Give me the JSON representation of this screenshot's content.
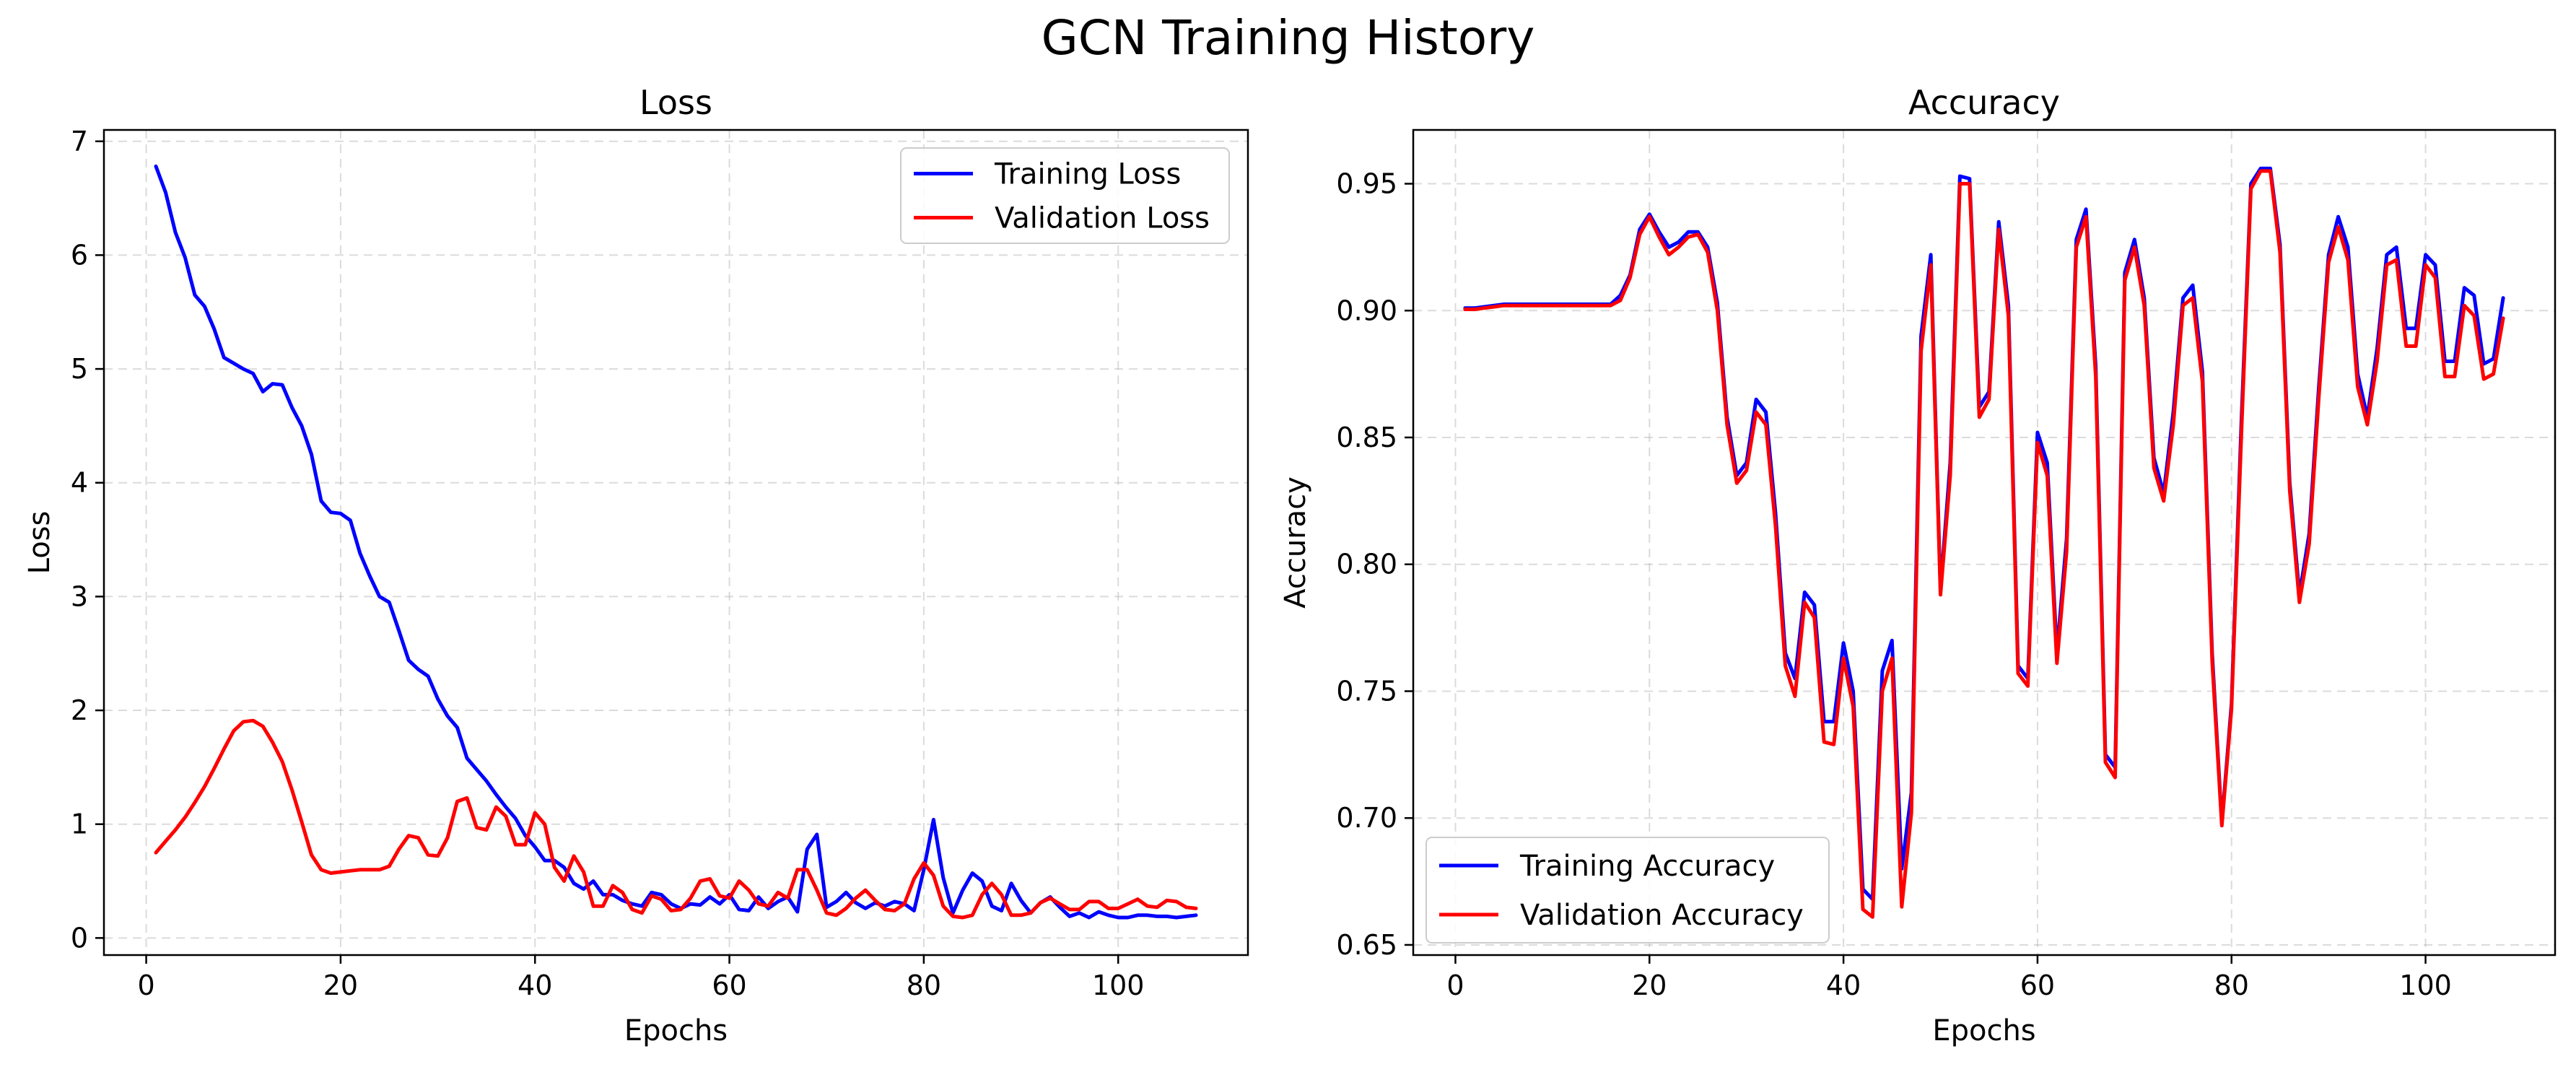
{
  "figure": {
    "title": "GCN Training History"
  },
  "chart_data": [
    {
      "type": "line",
      "title": "Loss",
      "xlabel": "Epochs",
      "ylabel": "Loss",
      "xlim": [
        -4.35,
        113.35
      ],
      "ylim": [
        -0.15,
        7.1
      ],
      "xticks": [
        0,
        20,
        40,
        60,
        80,
        100
      ],
      "yticks": [
        0,
        1,
        2,
        3,
        4,
        5,
        6,
        7
      ],
      "grid": true,
      "legend_position": "top-right",
      "series": [
        {
          "name": "Training Loss",
          "color": "#0000ff",
          "x": [
            1,
            2,
            3,
            4,
            5,
            6,
            7,
            8,
            9,
            10,
            11,
            12,
            13,
            14,
            15,
            16,
            17,
            18,
            19,
            20,
            21,
            22,
            23,
            24,
            25,
            26,
            27,
            28,
            29,
            30,
            31,
            32,
            33,
            34,
            35,
            36,
            37,
            38,
            39,
            40,
            41,
            42,
            43,
            44,
            45,
            46,
            47,
            48,
            49,
            50,
            51,
            52,
            53,
            54,
            55,
            56,
            57,
            58,
            59,
            60,
            61,
            62,
            63,
            64,
            65,
            66,
            67,
            68,
            69,
            70,
            71,
            72,
            73,
            74,
            75,
            76,
            77,
            78,
            79,
            80,
            81,
            82,
            83,
            84,
            85,
            86,
            87,
            88,
            89,
            90,
            91,
            92,
            93,
            94,
            95,
            96,
            97,
            98,
            99,
            100,
            101,
            102,
            103,
            104,
            105,
            106,
            107,
            108
          ],
          "y": [
            6.78,
            6.55,
            6.2,
            5.98,
            5.65,
            5.55,
            5.35,
            5.1,
            5.05,
            5.0,
            4.96,
            4.8,
            4.87,
            4.86,
            4.66,
            4.5,
            4.25,
            3.84,
            3.74,
            3.73,
            3.67,
            3.38,
            3.18,
            3.0,
            2.95,
            2.7,
            2.44,
            2.36,
            2.3,
            2.1,
            1.95,
            1.85,
            1.58,
            1.48,
            1.38,
            1.26,
            1.15,
            1.05,
            0.9,
            0.8,
            0.68,
            0.68,
            0.62,
            0.48,
            0.43,
            0.5,
            0.38,
            0.38,
            0.33,
            0.3,
            0.28,
            0.4,
            0.38,
            0.3,
            0.26,
            0.3,
            0.29,
            0.36,
            0.3,
            0.38,
            0.25,
            0.24,
            0.36,
            0.26,
            0.32,
            0.36,
            0.23,
            0.78,
            0.91,
            0.27,
            0.32,
            0.4,
            0.31,
            0.26,
            0.31,
            0.28,
            0.32,
            0.3,
            0.24,
            0.6,
            1.04,
            0.53,
            0.22,
            0.42,
            0.57,
            0.5,
            0.28,
            0.24,
            0.48,
            0.33,
            0.22,
            0.31,
            0.36,
            0.27,
            0.19,
            0.22,
            0.18,
            0.23,
            0.2,
            0.18,
            0.18,
            0.2,
            0.2,
            0.19,
            0.19,
            0.18,
            0.19,
            0.2
          ]
        },
        {
          "name": "Validation Loss",
          "color": "#ff0000",
          "x": [
            1,
            2,
            3,
            4,
            5,
            6,
            7,
            8,
            9,
            10,
            11,
            12,
            13,
            14,
            15,
            16,
            17,
            18,
            19,
            20,
            21,
            22,
            23,
            24,
            25,
            26,
            27,
            28,
            29,
            30,
            31,
            32,
            33,
            34,
            35,
            36,
            37,
            38,
            39,
            40,
            41,
            42,
            43,
            44,
            45,
            46,
            47,
            48,
            49,
            50,
            51,
            52,
            53,
            54,
            55,
            56,
            57,
            58,
            59,
            60,
            61,
            62,
            63,
            64,
            65,
            66,
            67,
            68,
            69,
            70,
            71,
            72,
            73,
            74,
            75,
            76,
            77,
            78,
            79,
            80,
            81,
            82,
            83,
            84,
            85,
            86,
            87,
            88,
            89,
            90,
            91,
            92,
            93,
            94,
            95,
            96,
            97,
            98,
            99,
            100,
            101,
            102,
            103,
            104,
            105,
            106,
            107,
            108
          ],
          "y": [
            0.75,
            0.85,
            0.95,
            1.06,
            1.19,
            1.33,
            1.49,
            1.66,
            1.82,
            1.9,
            1.91,
            1.86,
            1.72,
            1.55,
            1.3,
            1.02,
            0.73,
            0.6,
            0.57,
            0.58,
            0.59,
            0.6,
            0.6,
            0.6,
            0.63,
            0.78,
            0.9,
            0.88,
            0.73,
            0.72,
            0.88,
            1.2,
            1.23,
            0.97,
            0.95,
            1.15,
            1.07,
            0.82,
            0.82,
            1.1,
            1.0,
            0.62,
            0.5,
            0.72,
            0.58,
            0.28,
            0.28,
            0.46,
            0.4,
            0.25,
            0.22,
            0.37,
            0.34,
            0.24,
            0.25,
            0.35,
            0.5,
            0.52,
            0.37,
            0.35,
            0.5,
            0.42,
            0.3,
            0.28,
            0.4,
            0.35,
            0.6,
            0.6,
            0.42,
            0.22,
            0.2,
            0.26,
            0.35,
            0.42,
            0.33,
            0.25,
            0.24,
            0.3,
            0.52,
            0.66,
            0.55,
            0.28,
            0.19,
            0.18,
            0.2,
            0.38,
            0.48,
            0.38,
            0.2,
            0.2,
            0.22,
            0.31,
            0.35,
            0.3,
            0.25,
            0.25,
            0.32,
            0.32,
            0.26,
            0.26,
            0.3,
            0.34,
            0.28,
            0.27,
            0.33,
            0.32,
            0.27,
            0.26
          ]
        }
      ]
    },
    {
      "type": "line",
      "title": "Accuracy",
      "xlabel": "Epochs",
      "ylabel": "Accuracy",
      "xlim": [
        -4.35,
        113.35
      ],
      "ylim": [
        0.646,
        0.9712
      ],
      "xticks": [
        0,
        20,
        40,
        60,
        80,
        100
      ],
      "yticks": [
        0.65,
        0.7,
        0.75,
        0.8,
        0.85,
        0.9,
        0.95
      ],
      "ytick_labels": [
        "0.65",
        "0.70",
        "0.75",
        "0.80",
        "0.85",
        "0.90",
        "0.95"
      ],
      "grid": true,
      "legend_position": "bottom-left",
      "series": [
        {
          "name": "Training Accuracy",
          "color": "#0000ff",
          "x": [
            1,
            2,
            3,
            4,
            5,
            6,
            7,
            8,
            9,
            10,
            11,
            12,
            13,
            14,
            15,
            16,
            17,
            18,
            19,
            20,
            21,
            22,
            23,
            24,
            25,
            26,
            27,
            28,
            29,
            30,
            31,
            32,
            33,
            34,
            35,
            36,
            37,
            38,
            39,
            40,
            41,
            42,
            43,
            44,
            45,
            46,
            47,
            48,
            49,
            50,
            51,
            52,
            53,
            54,
            55,
            56,
            57,
            58,
            59,
            60,
            61,
            62,
            63,
            64,
            65,
            66,
            67,
            68,
            69,
            70,
            71,
            72,
            73,
            74,
            75,
            76,
            77,
            78,
            79,
            80,
            81,
            82,
            83,
            84,
            85,
            86,
            87,
            88,
            89,
            90,
            91,
            92,
            93,
            94,
            95,
            96,
            97,
            98,
            99,
            100,
            101,
            102,
            103,
            104,
            105,
            106,
            107,
            108
          ],
          "y": [
            0.901,
            0.901,
            0.9015,
            0.902,
            0.9025,
            0.9025,
            0.9025,
            0.9025,
            0.9025,
            0.9025,
            0.9025,
            0.9025,
            0.9025,
            0.9025,
            0.9025,
            0.9025,
            0.906,
            0.914,
            0.932,
            0.938,
            0.931,
            0.925,
            0.927,
            0.931,
            0.931,
            0.925,
            0.903,
            0.858,
            0.835,
            0.84,
            0.865,
            0.86,
            0.82,
            0.765,
            0.755,
            0.789,
            0.784,
            0.738,
            0.738,
            0.769,
            0.75,
            0.672,
            0.668,
            0.758,
            0.77,
            0.68,
            0.71,
            0.89,
            0.922,
            0.79,
            0.84,
            0.953,
            0.952,
            0.862,
            0.868,
            0.935,
            0.902,
            0.76,
            0.755,
            0.852,
            0.84,
            0.765,
            0.81,
            0.928,
            0.94,
            0.878,
            0.725,
            0.72,
            0.915,
            0.928,
            0.905,
            0.842,
            0.828,
            0.86,
            0.905,
            0.91,
            0.876,
            0.765,
            0.698,
            0.745,
            0.855,
            0.95,
            0.956,
            0.956,
            0.926,
            0.832,
            0.788,
            0.812,
            0.87,
            0.922,
            0.937,
            0.925,
            0.875,
            0.858,
            0.885,
            0.922,
            0.925,
            0.893,
            0.893,
            0.922,
            0.918,
            0.88,
            0.88,
            0.909,
            0.906,
            0.879,
            0.881,
            0.905
          ]
        },
        {
          "name": "Validation Accuracy",
          "color": "#ff0000",
          "x": [
            1,
            2,
            3,
            4,
            5,
            6,
            7,
            8,
            9,
            10,
            11,
            12,
            13,
            14,
            15,
            16,
            17,
            18,
            19,
            20,
            21,
            22,
            23,
            24,
            25,
            26,
            27,
            28,
            29,
            30,
            31,
            32,
            33,
            34,
            35,
            36,
            37,
            38,
            39,
            40,
            41,
            42,
            43,
            44,
            45,
            46,
            47,
            48,
            49,
            50,
            51,
            52,
            53,
            54,
            55,
            56,
            57,
            58,
            59,
            60,
            61,
            62,
            63,
            64,
            65,
            66,
            67,
            68,
            69,
            70,
            71,
            72,
            73,
            74,
            75,
            76,
            77,
            78,
            79,
            80,
            81,
            82,
            83,
            84,
            85,
            86,
            87,
            88,
            89,
            90,
            91,
            92,
            93,
            94,
            95,
            96,
            97,
            98,
            99,
            100,
            101,
            102,
            103,
            104,
            105,
            106,
            107,
            108
          ],
          "y": [
            0.9005,
            0.9005,
            0.901,
            0.9015,
            0.902,
            0.902,
            0.902,
            0.902,
            0.902,
            0.902,
            0.902,
            0.902,
            0.902,
            0.902,
            0.902,
            0.902,
            0.904,
            0.913,
            0.93,
            0.937,
            0.929,
            0.922,
            0.925,
            0.929,
            0.93,
            0.923,
            0.9,
            0.855,
            0.832,
            0.837,
            0.86,
            0.855,
            0.815,
            0.76,
            0.748,
            0.785,
            0.779,
            0.73,
            0.729,
            0.763,
            0.744,
            0.664,
            0.661,
            0.75,
            0.763,
            0.665,
            0.702,
            0.884,
            0.918,
            0.788,
            0.835,
            0.95,
            0.95,
            0.858,
            0.865,
            0.932,
            0.898,
            0.757,
            0.752,
            0.848,
            0.835,
            0.761,
            0.805,
            0.925,
            0.937,
            0.874,
            0.722,
            0.716,
            0.912,
            0.925,
            0.902,
            0.838,
            0.825,
            0.855,
            0.902,
            0.905,
            0.872,
            0.762,
            0.697,
            0.743,
            0.85,
            0.948,
            0.955,
            0.955,
            0.923,
            0.829,
            0.785,
            0.808,
            0.866,
            0.919,
            0.933,
            0.92,
            0.87,
            0.855,
            0.88,
            0.918,
            0.92,
            0.886,
            0.886,
            0.918,
            0.913,
            0.874,
            0.874,
            0.902,
            0.898,
            0.873,
            0.875,
            0.897
          ]
        }
      ]
    }
  ]
}
